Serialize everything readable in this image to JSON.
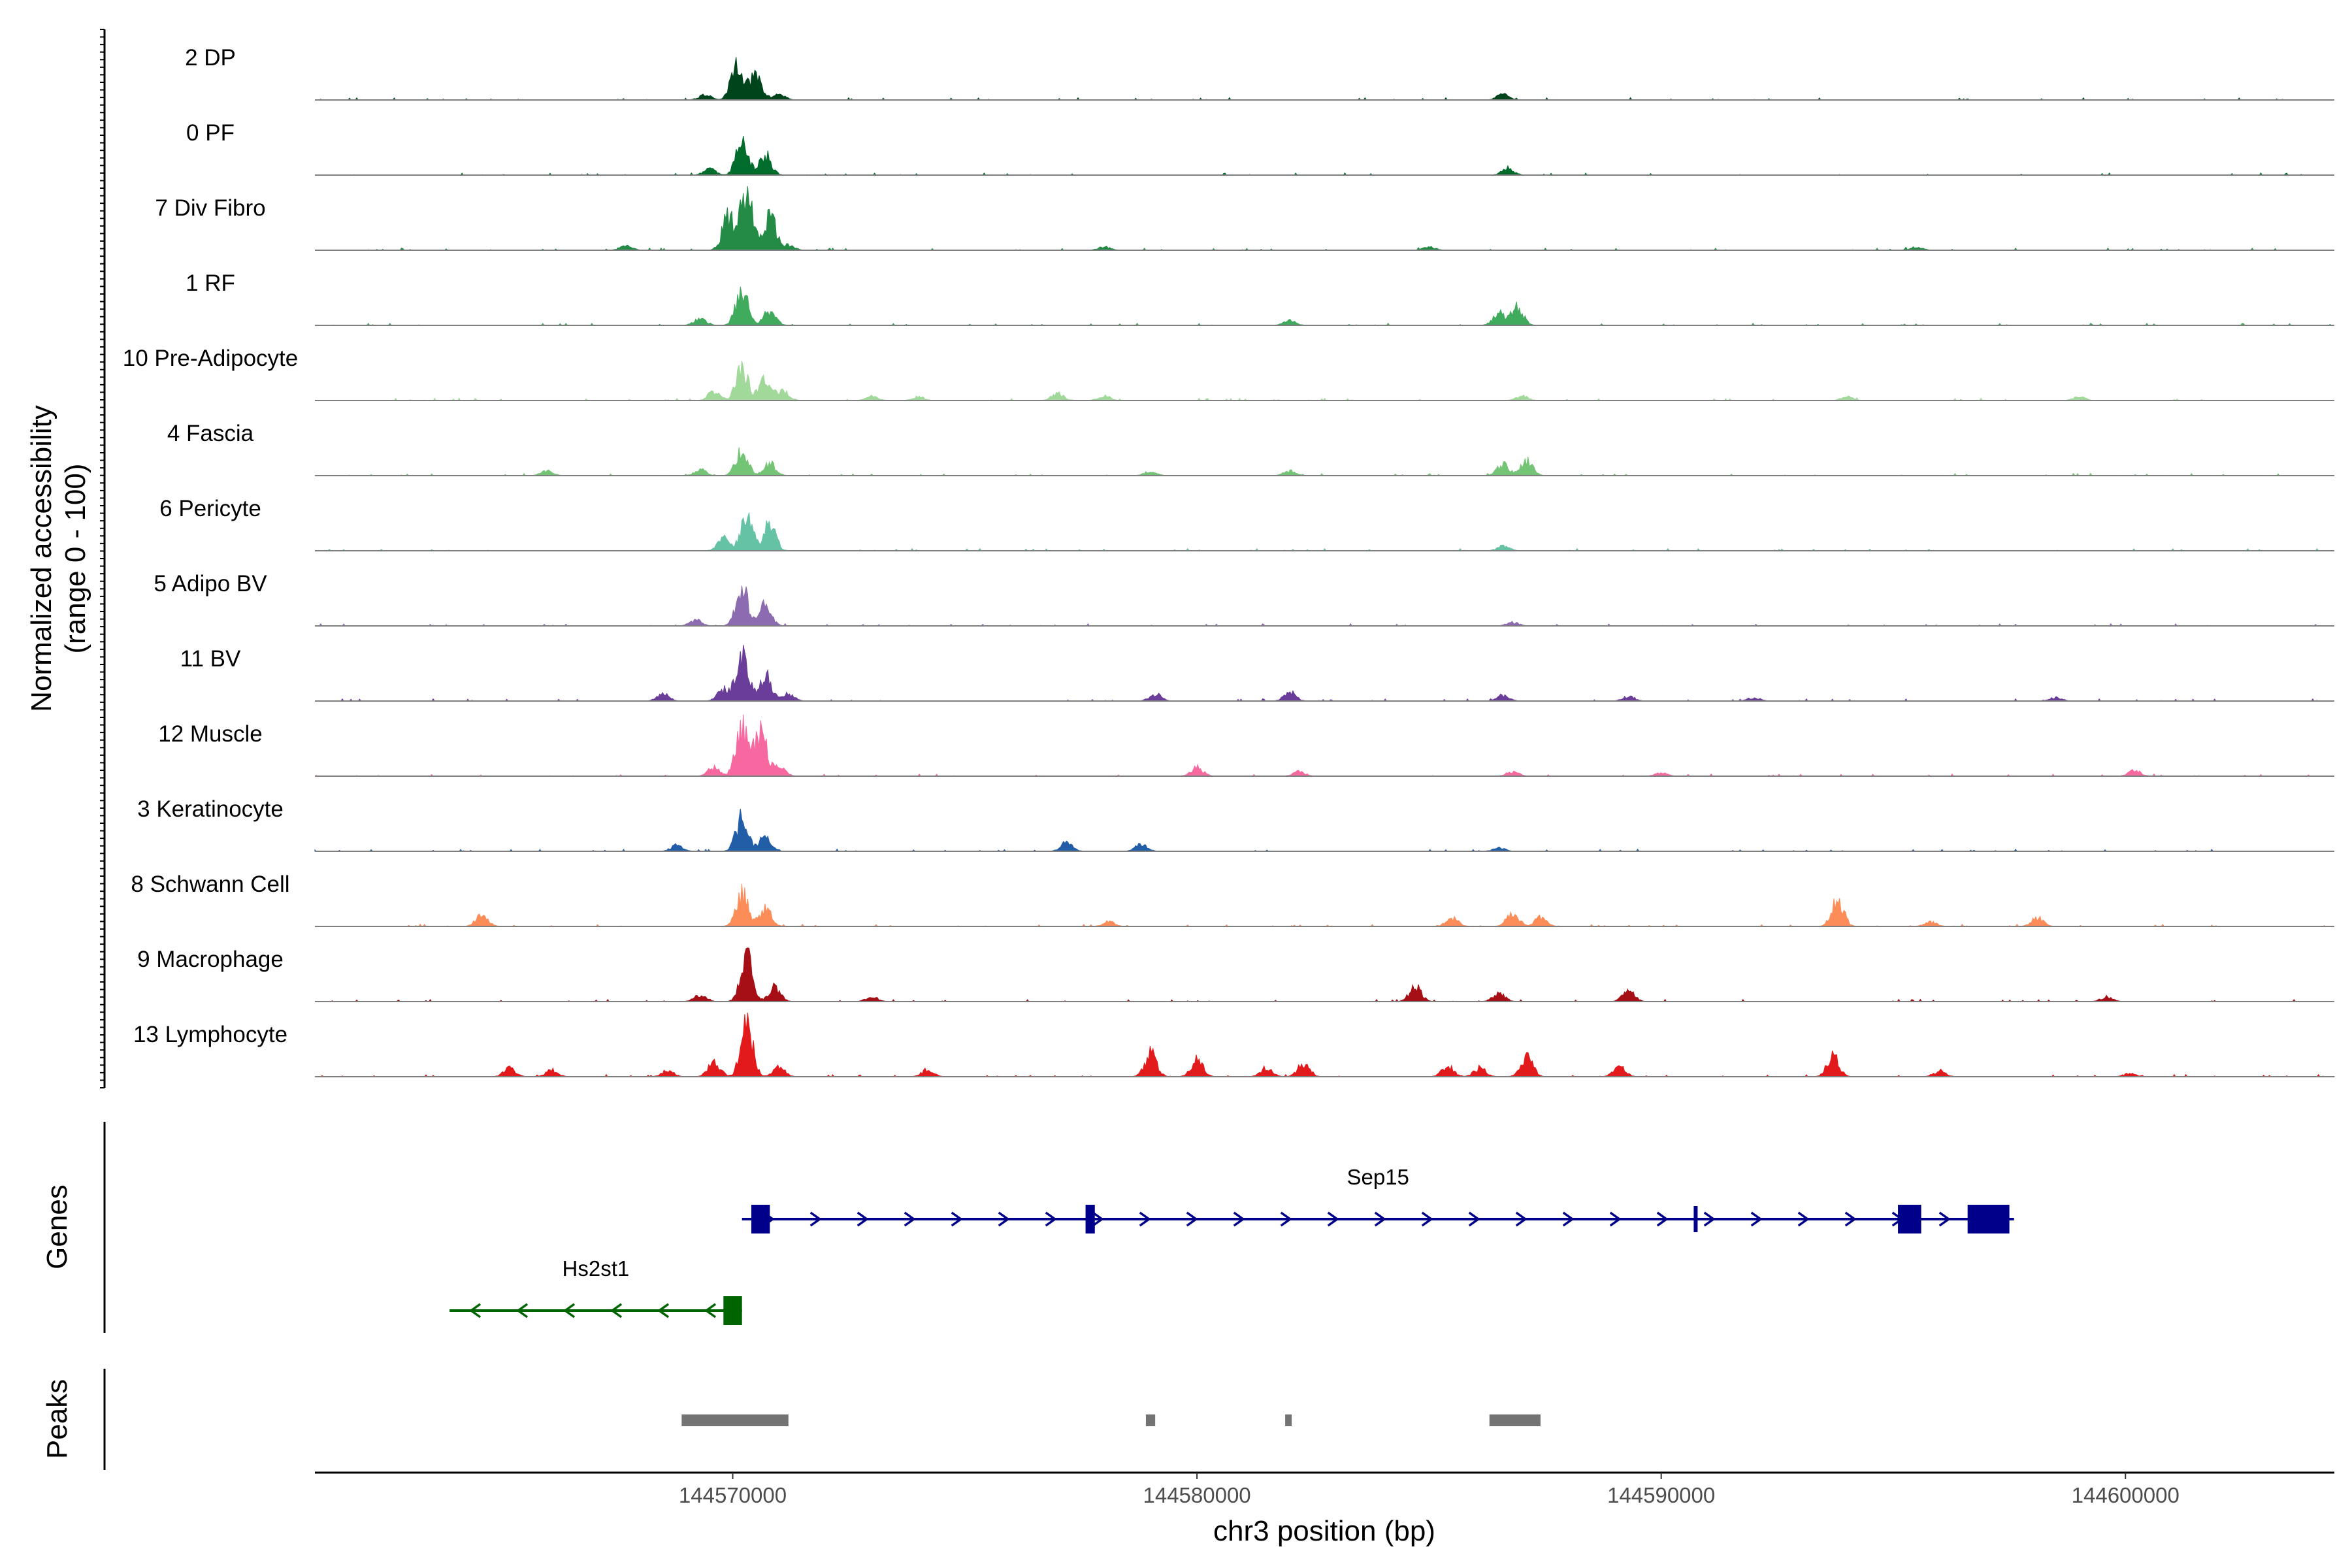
{
  "chart_data": {
    "type": "area",
    "title": "",
    "ylabel": "Normalized accessibility\n(range 0 - 100)",
    "xlabel": "chr3 position (bp)",
    "chromosome": "chr3",
    "xlim": [
      144561000,
      144604500
    ],
    "ylim": [
      0,
      100
    ],
    "x_ticks": [
      144570000,
      144580000,
      144590000,
      144600000
    ],
    "x_tick_labels": [
      "144570000",
      "144580000",
      "144590000",
      "144600000"
    ],
    "tracks": [
      {
        "name": "2 DP",
        "color": "#00441b",
        "peaks": [
          [
            144569400,
            9
          ],
          [
            144570100,
            65
          ],
          [
            144570500,
            40
          ],
          [
            144571000,
            10
          ],
          [
            144586600,
            10
          ]
        ]
      },
      {
        "name": "0 PF",
        "color": "#006d2c",
        "peaks": [
          [
            144569500,
            10
          ],
          [
            144570200,
            55
          ],
          [
            144570700,
            35
          ],
          [
            144586700,
            12
          ]
        ]
      },
      {
        "name": "7 Div Fibro",
        "color": "#238b45",
        "peaks": [
          [
            144569900,
            55
          ],
          [
            144570300,
            100
          ],
          [
            144570800,
            60
          ],
          [
            144571200,
            8
          ],
          [
            144567700,
            8
          ],
          [
            144578000,
            6
          ],
          [
            144585000,
            6
          ],
          [
            144595500,
            6
          ]
        ]
      },
      {
        "name": "1 RF",
        "color": "#41ab5d",
        "peaks": [
          [
            144570200,
            60
          ],
          [
            144570800,
            25
          ],
          [
            144569300,
            12
          ],
          [
            144582000,
            8
          ],
          [
            144586500,
            20
          ],
          [
            144586900,
            30
          ]
        ]
      },
      {
        "name": "10 Pre-Adipocyte",
        "color": "#a1d99b",
        "peaks": [
          [
            144569600,
            15
          ],
          [
            144570200,
            55
          ],
          [
            144570700,
            35
          ],
          [
            144571100,
            15
          ],
          [
            144573000,
            8
          ],
          [
            144574000,
            6
          ],
          [
            144577000,
            12
          ],
          [
            144578000,
            8
          ],
          [
            144587000,
            8
          ],
          [
            144594000,
            6
          ],
          [
            144599000,
            6
          ]
        ]
      },
      {
        "name": "4 Fascia",
        "color": "#74c476",
        "peaks": [
          [
            144570200,
            45
          ],
          [
            144570800,
            20
          ],
          [
            144569300,
            10
          ],
          [
            144566000,
            8
          ],
          [
            144579000,
            8
          ],
          [
            144582000,
            8
          ],
          [
            144586600,
            20
          ],
          [
            144587100,
            25
          ]
        ]
      },
      {
        "name": "6 Pericyte",
        "color": "#66c2a4",
        "peaks": [
          [
            144569800,
            20
          ],
          [
            144570300,
            60
          ],
          [
            144570800,
            45
          ],
          [
            144586600,
            8
          ]
        ]
      },
      {
        "name": "5 Adipo BV",
        "color": "#8c6bb1",
        "peaks": [
          [
            144569200,
            10
          ],
          [
            144570200,
            65
          ],
          [
            144570700,
            35
          ],
          [
            144586800,
            6
          ]
        ]
      },
      {
        "name": "11 BV",
        "color": "#6a3d9a",
        "peaks": [
          [
            144568500,
            12
          ],
          [
            144569800,
            20
          ],
          [
            144570200,
            85
          ],
          [
            144570700,
            45
          ],
          [
            144571200,
            12
          ],
          [
            144579100,
            12
          ],
          [
            144582000,
            15
          ],
          [
            144586600,
            10
          ],
          [
            144589300,
            8
          ],
          [
            144592000,
            6
          ],
          [
            144598500,
            6
          ]
        ]
      },
      {
        "name": "12 Muscle",
        "color": "#f768a1",
        "peaks": [
          [
            144569600,
            15
          ],
          [
            144570200,
            85
          ],
          [
            144570600,
            80
          ],
          [
            144571000,
            15
          ],
          [
            144580000,
            15
          ],
          [
            144582200,
            8
          ],
          [
            144586800,
            8
          ],
          [
            144590000,
            6
          ],
          [
            144600200,
            10
          ]
        ]
      },
      {
        "name": "3 Keratinocyte",
        "color": "#225ea8",
        "peaks": [
          [
            144568800,
            10
          ],
          [
            144570200,
            55
          ],
          [
            144570700,
            25
          ],
          [
            144577200,
            15
          ],
          [
            144578800,
            12
          ],
          [
            144586500,
            6
          ]
        ]
      },
      {
        "name": "8 Schwann Cell",
        "color": "#fc8d59",
        "peaks": [
          [
            144564600,
            20
          ],
          [
            144570200,
            55
          ],
          [
            144570700,
            30
          ],
          [
            144578100,
            8
          ],
          [
            144585500,
            15
          ],
          [
            144586800,
            25
          ],
          [
            144587400,
            15
          ],
          [
            144593800,
            45
          ],
          [
            144595800,
            8
          ],
          [
            144598100,
            15
          ]
        ]
      },
      {
        "name": "9 Macrophage",
        "color": "#a50f15",
        "peaks": [
          [
            144569300,
            12
          ],
          [
            144570300,
            75
          ],
          [
            144570900,
            25
          ],
          [
            144573000,
            8
          ],
          [
            144584700,
            25
          ],
          [
            144586500,
            15
          ],
          [
            144589300,
            18
          ],
          [
            144599600,
            8
          ]
        ]
      },
      {
        "name": "13 Lymphocyte",
        "color": "#e31a1c",
        "peaks": [
          [
            144565200,
            15
          ],
          [
            144566100,
            12
          ],
          [
            144568600,
            10
          ],
          [
            144569600,
            25
          ],
          [
            144570300,
            90
          ],
          [
            144571000,
            15
          ],
          [
            144574200,
            12
          ],
          [
            144579000,
            40
          ],
          [
            144580000,
            30
          ],
          [
            144581500,
            15
          ],
          [
            144582300,
            22
          ],
          [
            144585400,
            18
          ],
          [
            144586100,
            15
          ],
          [
            144587100,
            35
          ],
          [
            144589100,
            18
          ],
          [
            144593700,
            35
          ],
          [
            144596000,
            10
          ],
          [
            144600100,
            6
          ]
        ]
      }
    ],
    "genes_label": "Genes",
    "genes": [
      {
        "name": "Sep15",
        "strand": "+",
        "color": "#00008b",
        "start": 144570200,
        "end": 144597600,
        "exons": [
          [
            144570400,
            144570800
          ],
          [
            144577600,
            144577800
          ],
          [
            144590700,
            144590750
          ],
          [
            144595100,
            144595600
          ],
          [
            144596600,
            144597500
          ]
        ]
      },
      {
        "name": "Hs2st1",
        "strand": "-",
        "color": "#006400",
        "start": 144563900,
        "end": 144570200,
        "exons": [
          [
            144569800,
            144570200
          ]
        ]
      }
    ],
    "peaks_label": "Peaks",
    "peak_regions": [
      [
        144568900,
        144571200
      ],
      [
        144578900,
        144579100
      ],
      [
        144581900,
        144582000
      ],
      [
        144586300,
        144587400
      ]
    ],
    "peak_color": "#737373"
  }
}
